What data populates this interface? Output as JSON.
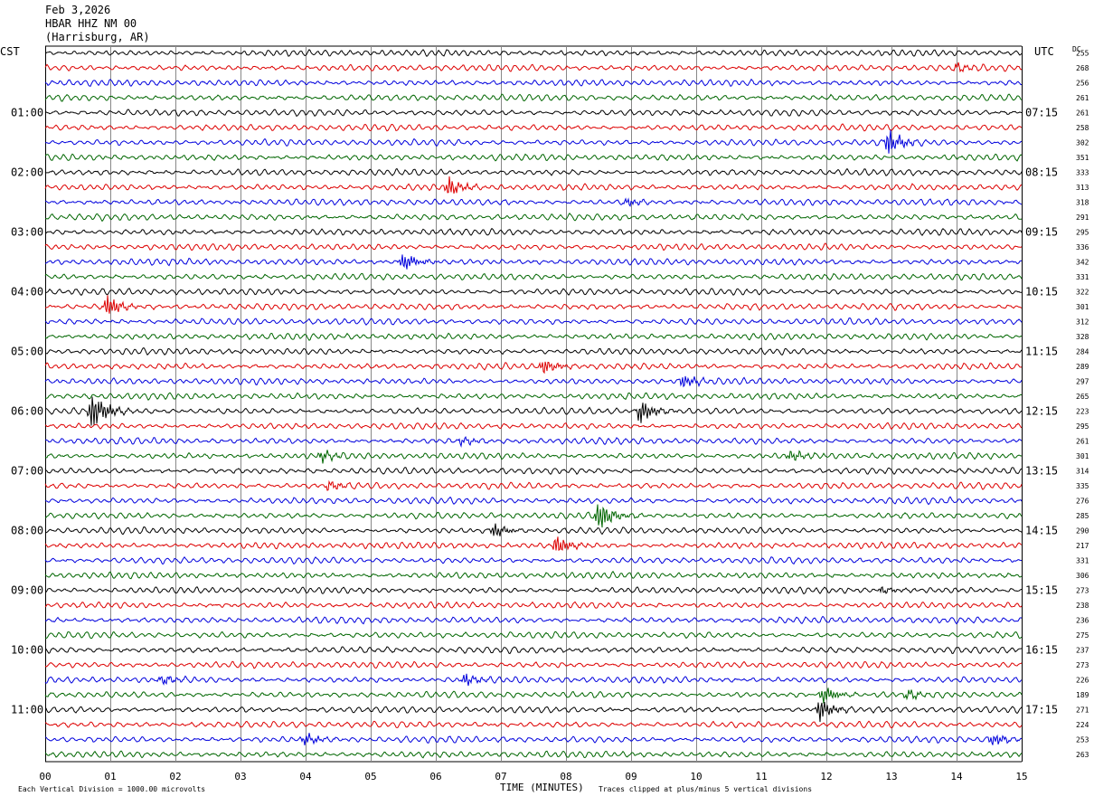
{
  "header": {
    "date": "Feb 3,2026",
    "station": "HBAR HHZ NM 00",
    "location": "(Harrisburg, AR)"
  },
  "left_timezone": "CST",
  "right_timezone": "UTC",
  "dc_header": "DC",
  "footer": {
    "left_note": "Each Vertical Division = 1000.00 microvolts",
    "xlabel": "TIME (MINUTES)",
    "right_note": "Traces clipped at plus/minus 5 vertical divisions"
  },
  "chart_data": {
    "type": "line",
    "title": "",
    "xlabel": "TIME (MINUTES)",
    "xlim": [
      0,
      15
    ],
    "x_ticks": [
      "00",
      "01",
      "02",
      "03",
      "04",
      "05",
      "06",
      "07",
      "08",
      "09",
      "10",
      "11",
      "12",
      "13",
      "14",
      "15"
    ],
    "grid": "vertical lines each minute",
    "trace_count": 48,
    "trace_colors": [
      "#000000",
      "#dd0000",
      "#0000dd",
      "#006600"
    ],
    "left_hour_labels": [
      "01:00",
      "02:00",
      "03:00",
      "04:00",
      "05:00",
      "06:00",
      "07:00",
      "08:00",
      "09:00",
      "10:00",
      "11:00"
    ],
    "right_hour_labels": [
      "07:15",
      "08:15",
      "09:15",
      "10:15",
      "11:15",
      "12:15",
      "13:15",
      "14:15",
      "15:15",
      "16:15",
      "17:15"
    ],
    "dc_offsets": [
      "255",
      "268",
      "256",
      "261",
      "261",
      "258",
      "302",
      "351",
      "333",
      "313",
      "318",
      "291",
      "295",
      "336",
      "342",
      "331",
      "322",
      "301",
      "312",
      "328",
      "284",
      "289",
      "297",
      "265",
      "223",
      "295",
      "261",
      "301",
      "314",
      "335",
      "276",
      "285",
      "290",
      "217",
      "331",
      "306",
      "273",
      "238",
      "236",
      "275",
      "237",
      "273",
      "226",
      "189",
      "271",
      "224",
      "253",
      "263"
    ],
    "events": [
      {
        "trace": 1,
        "minute": 14.0,
        "amp": 0.25
      },
      {
        "trace": 6,
        "minute": 12.95,
        "amp": 1.0
      },
      {
        "trace": 9,
        "minute": 6.2,
        "amp": 0.8
      },
      {
        "trace": 10,
        "minute": 8.95,
        "amp": 0.3
      },
      {
        "trace": 14,
        "minute": 5.5,
        "amp": 0.7
      },
      {
        "trace": 17,
        "minute": 0.95,
        "amp": 0.9
      },
      {
        "trace": 21,
        "minute": 7.65,
        "amp": 0.6
      },
      {
        "trace": 22,
        "minute": 9.8,
        "amp": 0.5
      },
      {
        "trace": 24,
        "minute": 0.72,
        "amp": 1.6
      },
      {
        "trace": 24,
        "minute": 9.15,
        "amp": 0.9
      },
      {
        "trace": 26,
        "minute": 6.4,
        "amp": 0.3
      },
      {
        "trace": 27,
        "minute": 4.25,
        "amp": 0.35
      },
      {
        "trace": 27,
        "minute": 11.45,
        "amp": 0.4
      },
      {
        "trace": 29,
        "minute": 4.35,
        "amp": 0.35
      },
      {
        "trace": 31,
        "minute": 8.5,
        "amp": 1.2
      },
      {
        "trace": 32,
        "minute": 6.9,
        "amp": 0.5
      },
      {
        "trace": 33,
        "minute": 7.85,
        "amp": 0.7
      },
      {
        "trace": 36,
        "minute": 12.85,
        "amp": 0.25
      },
      {
        "trace": 42,
        "minute": 1.8,
        "amp": 0.3
      },
      {
        "trace": 42,
        "minute": 6.45,
        "amp": 0.4
      },
      {
        "trace": 43,
        "minute": 11.95,
        "amp": 0.7
      },
      {
        "trace": 43,
        "minute": 13.25,
        "amp": 0.35
      },
      {
        "trace": 44,
        "minute": 11.9,
        "amp": 0.8
      },
      {
        "trace": 46,
        "minute": 4.0,
        "amp": 0.45
      },
      {
        "trace": 46,
        "minute": 14.55,
        "amp": 0.5
      }
    ]
  }
}
